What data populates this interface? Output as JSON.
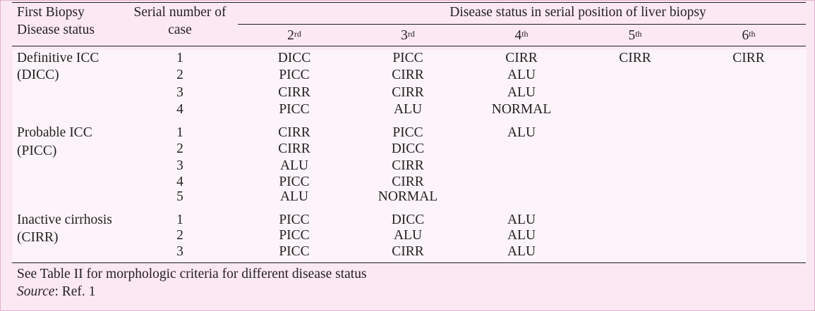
{
  "header": {
    "col1_line1": "First Biopsy",
    "col1_line2": "Disease status",
    "col2_line1": "Serial number of",
    "col2_line2": "case",
    "span_title": "Disease status in serial position of liver biopsy",
    "positions": [
      {
        "num": "2",
        "sup": "rd"
      },
      {
        "num": "3",
        "sup": "rd"
      },
      {
        "num": "4",
        "sup": "th"
      },
      {
        "num": "5",
        "sup": "th"
      },
      {
        "num": "6",
        "sup": "th"
      }
    ]
  },
  "groups": [
    {
      "label_line1": "Definitive ICC",
      "label_line2": "(DICC)",
      "rows": [
        {
          "case": "1",
          "values": [
            "DICC",
            "PICC",
            "CIRR",
            "CIRR",
            "CIRR"
          ]
        },
        {
          "case": "2",
          "values": [
            "PICC",
            "CIRR",
            "ALU",
            "",
            ""
          ]
        },
        {
          "case": "3",
          "values": [
            "CIRR",
            "CIRR",
            "ALU",
            "",
            ""
          ]
        },
        {
          "case": "4",
          "values": [
            "PICC",
            "ALU",
            "NORMAL",
            "",
            ""
          ]
        }
      ]
    },
    {
      "label_line1": "Probable ICC",
      "label_line2": "(PICC)",
      "rows": [
        {
          "case": "1",
          "values": [
            "CIRR",
            "PICC",
            "ALU",
            "",
            ""
          ]
        },
        {
          "case": "2",
          "values": [
            "CIRR",
            "DICC",
            "",
            "",
            ""
          ]
        },
        {
          "case": "3",
          "values": [
            "ALU",
            "CIRR",
            "",
            "",
            ""
          ]
        },
        {
          "case": "4",
          "values": [
            "PICC",
            "CIRR",
            "",
            "",
            ""
          ]
        },
        {
          "case": "5",
          "values": [
            "ALU",
            "NORMAL",
            "",
            "",
            ""
          ]
        }
      ]
    },
    {
      "label_line1": "Inactive cirrhosis",
      "label_line2": "(CIRR)",
      "rows": [
        {
          "case": "1",
          "values": [
            "PICC",
            "DICC",
            "ALU",
            "",
            ""
          ]
        },
        {
          "case": "2",
          "values": [
            "PICC",
            "ALU",
            "ALU",
            "",
            ""
          ]
        },
        {
          "case": "3",
          "values": [
            "PICC",
            "CIRR",
            "ALU",
            "",
            ""
          ]
        }
      ]
    }
  ],
  "footnote": "See Table II for morphologic criteria for different disease status",
  "source_label": "Source",
  "source_text": ": Ref. 1"
}
